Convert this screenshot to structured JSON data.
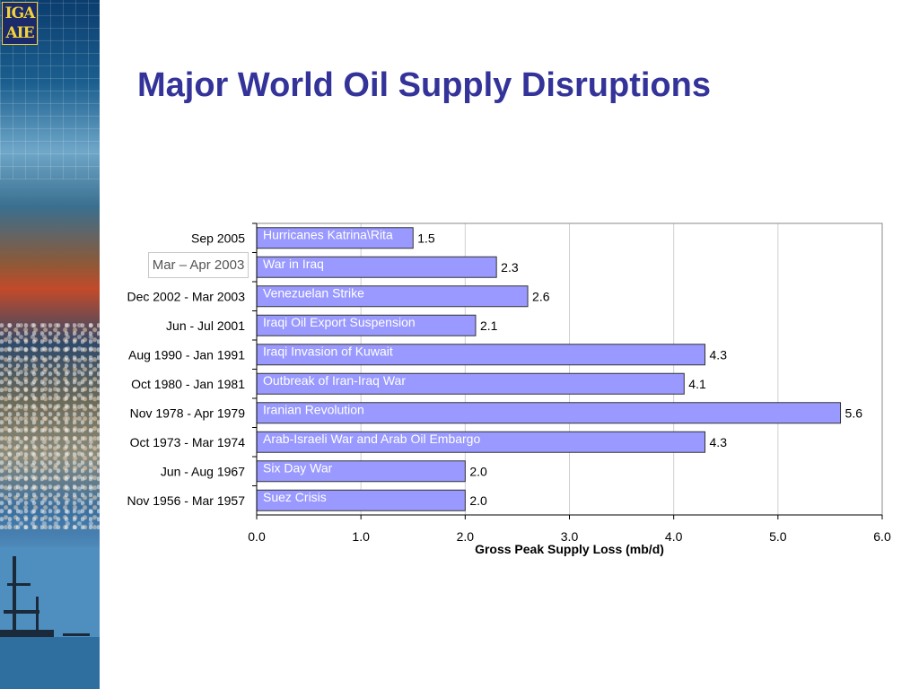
{
  "slide": {
    "title": "Major World Oil Supply Disruptions"
  },
  "logo": {
    "line1": "IGA",
    "line2": "AIE"
  },
  "callout": {
    "text": "Mar – Apr 2003"
  },
  "colors": {
    "title": "#333399",
    "bar_fill": "#9999ff",
    "bar_stroke": "#333333",
    "gridline": "#d0d0d0"
  },
  "chart_data": {
    "type": "bar",
    "orientation": "horizontal",
    "categories": [
      "Sep 2005",
      "",
      "Dec 2002 - Mar 2003",
      "Jun - Jul 2001",
      "Aug 1990 - Jan 1991",
      "Oct 1980 - Jan 1981",
      "Nov 1978 - Apr 1979",
      "Oct 1973 - Mar 1974",
      "Jun - Aug 1967",
      "Nov 1956 - Mar 1957"
    ],
    "bar_labels": [
      "Hurricanes Katrina\\Rita",
      "War in Iraq",
      "Venezuelan Strike",
      "Iraqi Oil Export Suspension",
      "Iraqi Invasion of Kuwait",
      "Outbreak of Iran-Iraq War",
      "Iranian Revolution",
      "Arab-Israeli War and Arab Oil Embargo",
      "Six Day War",
      "Suez Crisis"
    ],
    "values": [
      1.5,
      2.3,
      2.6,
      2.1,
      4.3,
      4.1,
      5.6,
      4.3,
      2.0,
      2.0
    ],
    "value_labels": [
      "1.5",
      "2.3",
      "2.6",
      "2.1",
      "4.3",
      "4.1",
      "5.6",
      "4.3",
      "2.0",
      "2.0"
    ],
    "xlabel": "Gross Peak Supply Loss (mb/d)",
    "xlim": [
      0,
      6
    ],
    "xticks": [
      0,
      1,
      2,
      3,
      4,
      5,
      6
    ],
    "xtick_labels": [
      "0.0",
      "1.0",
      "2.0",
      "3.0",
      "4.0",
      "5.0",
      "6.0"
    ],
    "grid": "vertical"
  }
}
